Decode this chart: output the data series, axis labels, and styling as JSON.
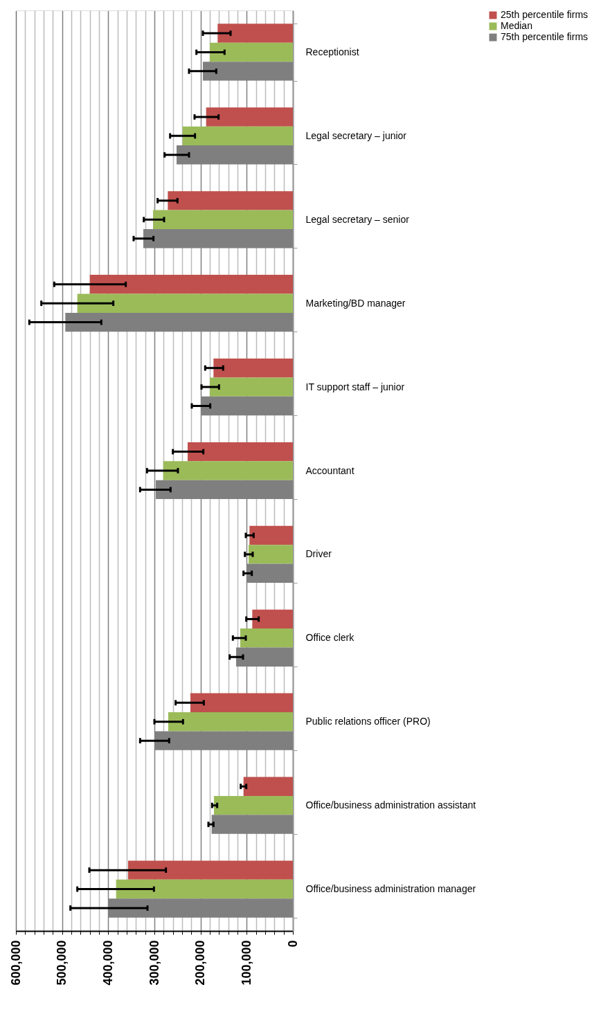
{
  "chart_data": {
    "type": "bar",
    "orientation": "horizontal",
    "categories": [
      "Receptionist",
      "Legal secretary – junior",
      "Legal secretary – senior",
      "Marketing/BD manager",
      "IT support staff – junior",
      "Accountant",
      "Driver",
      "Office clerk",
      "Public relations officer (PRO)",
      "Office/business administration assistant",
      "Office/business administration manager"
    ],
    "series": [
      {
        "name": "25th percentile firms",
        "color": "#c0504d",
        "values": [
          163000,
          188000,
          271000,
          440000,
          172000,
          228000,
          94000,
          88000,
          222000,
          107000,
          357000
        ],
        "errors": [
          [
            135000,
            195000
          ],
          [
            161000,
            213000
          ],
          [
            250000,
            293000
          ],
          [
            362000,
            517000
          ],
          [
            151000,
            190000
          ],
          [
            194000,
            260000
          ],
          [
            85000,
            102000
          ],
          [
            74000,
            101000
          ],
          [
            193000,
            254000
          ],
          [
            101000,
            113000
          ],
          [
            275000,
            441000
          ]
        ]
      },
      {
        "name": "Median",
        "color": "#9bbb59",
        "values": [
          180000,
          239000,
          303000,
          467000,
          180000,
          281000,
          96000,
          114000,
          270000,
          171000,
          383000
        ],
        "errors": [
          [
            148000,
            209000
          ],
          [
            212000,
            266000
          ],
          [
            279000,
            323000
          ],
          [
            389000,
            545000
          ],
          [
            160000,
            198000
          ],
          [
            249000,
            316000
          ],
          [
            87000,
            104000
          ],
          [
            102000,
            130000
          ],
          [
            238000,
            300000
          ],
          [
            164000,
            175000
          ],
          [
            301000,
            467000
          ]
        ]
      },
      {
        "name": "75th percentile firms",
        "color": "#7f7f7f",
        "values": [
          195000,
          252000,
          324000,
          493000,
          198000,
          297000,
          99000,
          123000,
          300000,
          176000,
          399000
        ],
        "errors": [
          [
            166000,
            225000
          ],
          [
            225000,
            278000
          ],
          [
            302000,
            345000
          ],
          [
            415000,
            571000
          ],
          [
            179000,
            219000
          ],
          [
            265000,
            331000
          ],
          [
            89000,
            107000
          ],
          [
            108000,
            137000
          ],
          [
            268000,
            331000
          ],
          [
            172000,
            183000
          ],
          [
            315000,
            482000
          ]
        ]
      }
    ],
    "xlim": [
      600000,
      0
    ],
    "xticks": [
      "600,000",
      {
        "value": 580000,
        "label": null
      },
      {
        "value": 560000,
        "label": null
      },
      {
        "value": 540000,
        "label": null
      },
      {
        "value": 520000,
        "label": null
      },
      {
        "value": 500000,
        "label": "500,000"
      },
      {
        "value": 480000,
        "label": null
      },
      {
        "value": 460000,
        "label": null
      },
      {
        "value": 440000,
        "label": null
      },
      {
        "value": 420000,
        "label": null
      },
      {
        "value": 400000,
        "label": "400,000"
      },
      {
        "value": 380000,
        "label": null
      },
      {
        "value": 360000,
        "label": null
      },
      {
        "value": 340000,
        "label": null
      },
      {
        "value": 320000,
        "label": null
      },
      {
        "value": 300000,
        "label": "300,000"
      },
      {
        "value": 280000,
        "label": null
      },
      {
        "value": 260000,
        "label": null
      },
      {
        "value": 240000,
        "label": null
      },
      {
        "value": 220000,
        "label": null
      },
      {
        "value": 200000,
        "label": "200,000"
      },
      {
        "value": 180000,
        "label": null
      },
      {
        "value": 160000,
        "label": null
      },
      {
        "value": 140000,
        "label": null
      },
      {
        "value": 120000,
        "label": null
      },
      {
        "value": 100000,
        "label": "100,000"
      },
      {
        "value": 80000,
        "label": null
      },
      {
        "value": 60000,
        "label": null
      },
      {
        "value": 40000,
        "label": null
      },
      {
        "value": 20000,
        "label": null
      },
      0
    ],
    "grid": "x",
    "legend": "right"
  }
}
